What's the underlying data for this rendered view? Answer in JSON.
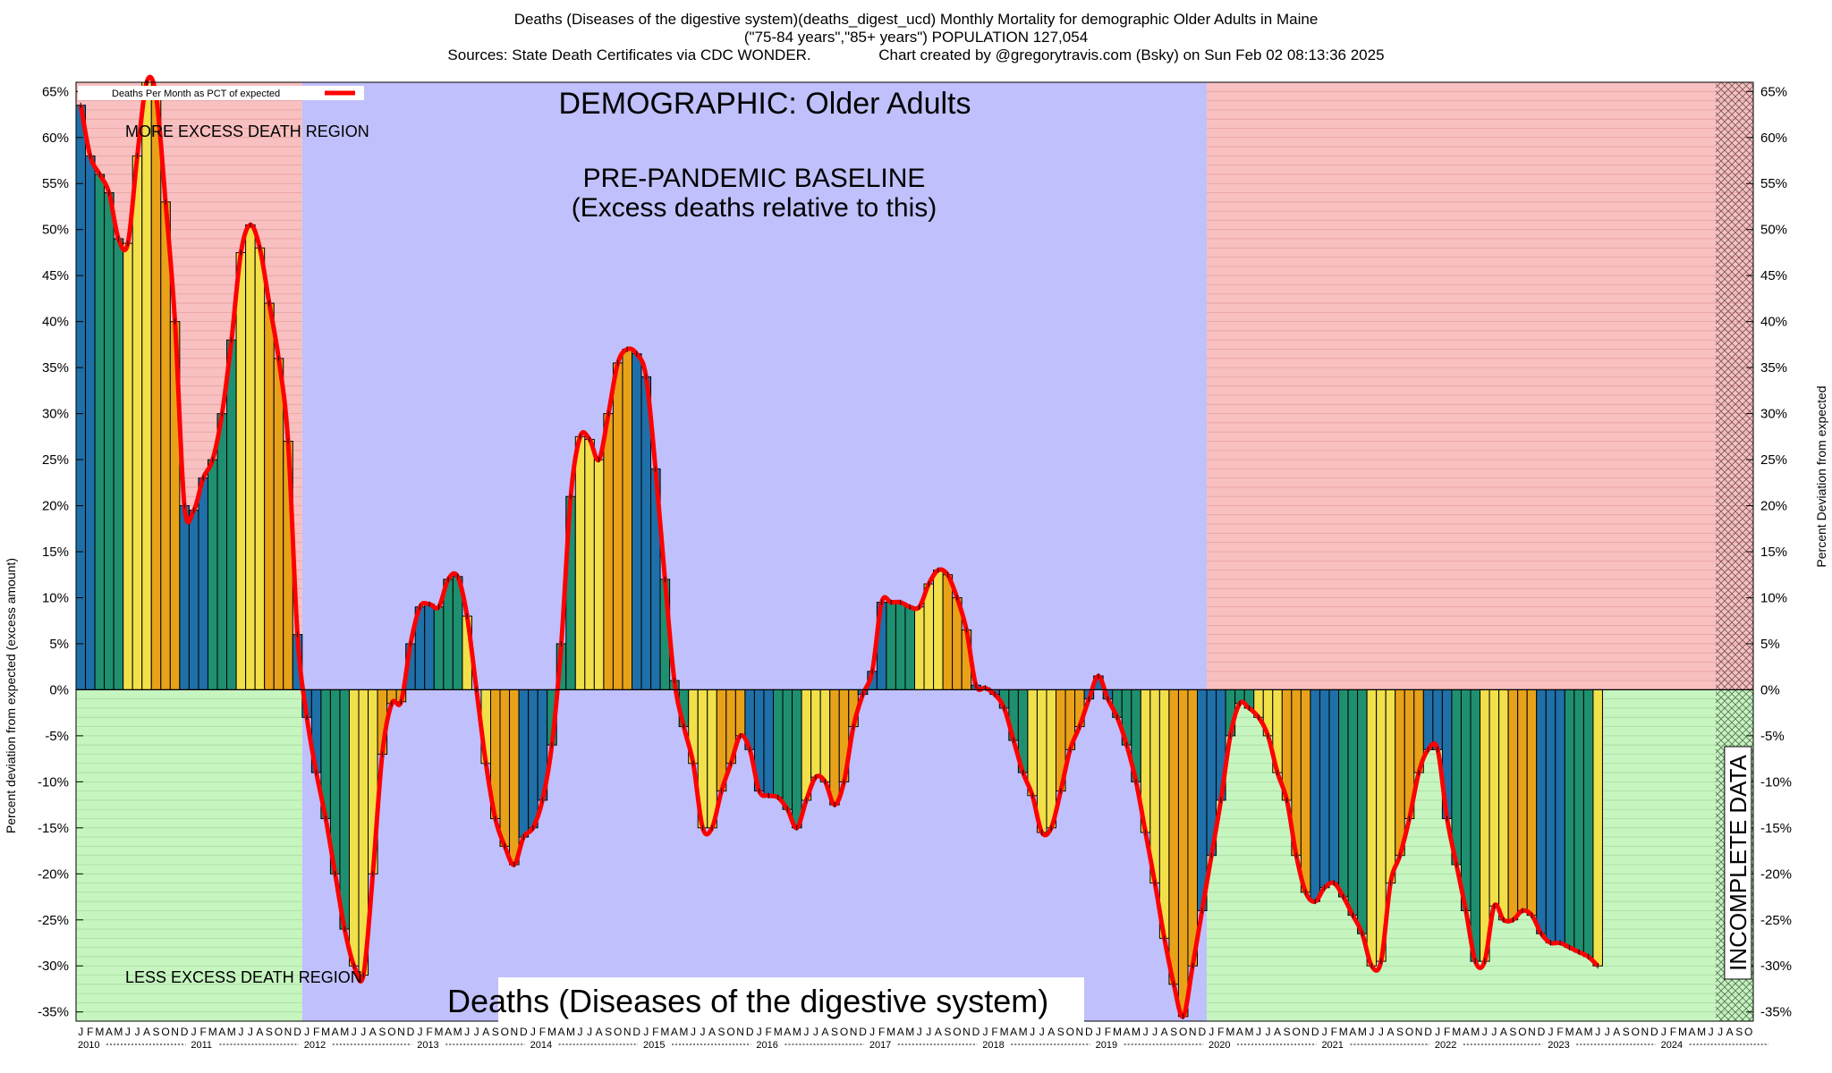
{
  "header": {
    "title_line1": "Deaths (Diseases of the digestive system)(deaths_digest_ucd) Monthly Mortality for demographic Older Adults in Maine",
    "title_line2": "(\"75-84 years\",\"85+ years\") POPULATION 127,054",
    "title_line3": "Sources: State Death Certificates via CDC WONDER.                Chart created by @gregorytravis.com (Bsky) on Sun Feb 02 08:13:36 2025"
  },
  "chart_data": {
    "type": "bar",
    "title": "Deaths (Diseases of the digestive system)(deaths_digest_ucd) Monthly Mortality for demographic Older Adults in Maine",
    "ylabel_left": "Percent deviation from expected (excess amount)",
    "ylabel_right": "Percent Deviation from expected",
    "ylim": [
      -36,
      66
    ],
    "y_ticks": [
      65,
      60,
      55,
      50,
      45,
      40,
      35,
      30,
      25,
      20,
      15,
      10,
      5,
      0,
      -5,
      -10,
      -15,
      -20,
      -25,
      -30,
      -35
    ],
    "y_tick_labels": [
      "65%",
      "60%",
      "55%",
      "50%",
      "45%",
      "40%",
      "35%",
      "30%",
      "25%",
      "20%",
      "15%",
      "10%",
      "5%",
      "0%",
      "-5%",
      "-10%",
      "-15%",
      "-20%",
      "-25%",
      "-30%",
      "-35%"
    ],
    "month_letters": [
      "J",
      "F",
      "M",
      "A",
      "M",
      "J",
      "J",
      "A",
      "S",
      "O",
      "N",
      "D"
    ],
    "years": [
      "2010",
      "2011",
      "2012",
      "2013",
      "2014",
      "2015",
      "2016",
      "2017",
      "2018",
      "2019",
      "2020",
      "2021",
      "2022",
      "2023",
      "2024"
    ],
    "legend": {
      "entry": "Deaths Per Month as PCT of expected",
      "position": "top-left"
    },
    "annotations": {
      "demographic": "DEMOGRAPHIC: Older Adults",
      "baseline_line1": "PRE-PANDEMIC BASELINE",
      "baseline_line2": "(Excess deaths relative to this)",
      "more_excess": "MORE EXCESS DEATH REGION",
      "less_excess": "LESS EXCESS DEATH REGION",
      "bottom_title": "Deaths (Diseases of the digestive system)",
      "incomplete": "INCOMPLETE DATA"
    },
    "regions": [
      {
        "name": "pre-baseline",
        "months": [
          0,
          24
        ]
      },
      {
        "name": "baseline",
        "months": [
          24,
          120
        ]
      },
      {
        "name": "pandemic",
        "months": [
          120,
          174
        ]
      },
      {
        "name": "incomplete",
        "months": [
          174,
          178
        ]
      }
    ],
    "season_colors": {
      "winter": "#1f6fa8",
      "spring": "#1e9070",
      "summer": "#f1e04a",
      "fall": "#e8a21a"
    },
    "region_colors": {
      "more": "#f8c0c0",
      "less": "#c6f5c0",
      "baseline": "#c0c0fc",
      "line": "#ff0000"
    },
    "values": [
      63.5,
      58.0,
      56.0,
      54.0,
      49.0,
      48.5,
      58.0,
      66.0,
      64.5,
      53.0,
      40.0,
      20.0,
      19.5,
      23.0,
      25.0,
      30.0,
      38.0,
      47.5,
      50.5,
      48.0,
      42.0,
      36.0,
      27.0,
      6.0,
      -3.0,
      -9.0,
      -14.0,
      -20.0,
      -26.0,
      -30.0,
      -31.0,
      -20.0,
      -7.0,
      -1.5,
      -1.3,
      5.0,
      9.0,
      9.3,
      9.0,
      12.0,
      12.3,
      8.0,
      0.0,
      -8.0,
      -14.0,
      -17.0,
      -19.0,
      -16.0,
      -15.0,
      -12.0,
      -6.0,
      5.0,
      21.0,
      27.5,
      27.2,
      25.0,
      30.0,
      35.5,
      37.0,
      36.5,
      34.0,
      24.0,
      12.0,
      1.0,
      -4.0,
      -8.0,
      -15.0,
      -15.0,
      -11.0,
      -8.0,
      -5.0,
      -6.5,
      -11.0,
      -11.5,
      -11.7,
      -13.0,
      -15.0,
      -12.0,
      -9.5,
      -10.0,
      -12.5,
      -10.0,
      -4.0,
      -0.5,
      2.0,
      9.5,
      9.5,
      9.5,
      9.0,
      9.0,
      11.5,
      13.0,
      12.5,
      10.0,
      6.5,
      0.5,
      0.2,
      -0.5,
      -2.0,
      -5.5,
      -9.0,
      -11.5,
      -15.5,
      -15.0,
      -11.0,
      -6.5,
      -4.0,
      -1.0,
      1.5,
      -1.0,
      -3.0,
      -6.0,
      -10.0,
      -15.5,
      -21.0,
      -27.0,
      -32.0,
      -35.5,
      -30.0,
      -24.0,
      -18.0,
      -12.0,
      -5.0,
      -1.5,
      -2.0,
      -3.0,
      -5.0,
      -9.0,
      -12.0,
      -18.0,
      -22.0,
      -23.0,
      -21.5,
      -21.0,
      -22.5,
      -24.5,
      -26.5,
      -30.0,
      -29.5,
      -21.0,
      -18.0,
      -14.0,
      -9.0,
      -6.5,
      -6.5,
      -14.0,
      -19.0,
      -24.0,
      -29.5,
      -29.5,
      -23.5,
      -25.0,
      -25.0,
      -24.0,
      -24.5,
      -26.5,
      -27.5,
      -27.5,
      -28.0,
      -28.5,
      -29.0,
      -30.0
    ]
  }
}
